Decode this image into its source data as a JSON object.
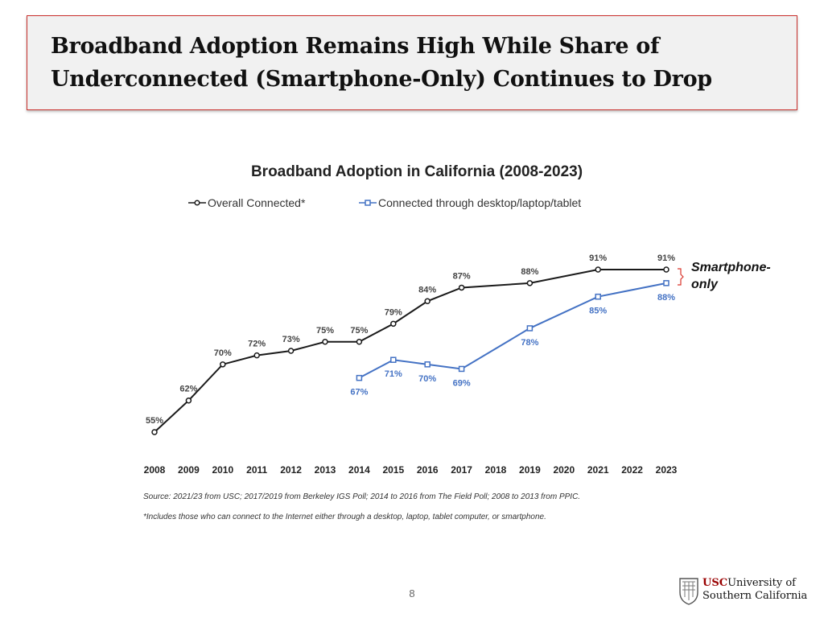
{
  "slide": {
    "title_line1": "Broadband Adoption Remains High While Share of",
    "title_line2": "Underconnected (Smartphone-Only) Continues to Drop",
    "page_number": "8",
    "callout": "Smartphone-only"
  },
  "logo": {
    "text_usc": "USC",
    "text_line1": "University of",
    "text_line2": "Southern California",
    "accent_color": "#990000"
  },
  "chart_data": {
    "type": "line",
    "title": "Broadband Adoption in California (2008-2023)",
    "xlabel": "",
    "ylabel": "",
    "ylim": [
      55,
      91
    ],
    "categories": [
      "2008",
      "2009",
      "2010",
      "2011",
      "2012",
      "2013",
      "2014",
      "2015",
      "2016",
      "2017",
      "2018",
      "2019",
      "2020",
      "2021",
      "2022",
      "2023"
    ],
    "series": [
      {
        "name": "Overall Connected*",
        "color": "#1a1a1a",
        "marker": "circle",
        "points": [
          {
            "x": "2008",
            "y": 55
          },
          {
            "x": "2009",
            "y": 62
          },
          {
            "x": "2010",
            "y": 70
          },
          {
            "x": "2011",
            "y": 72
          },
          {
            "x": "2012",
            "y": 73
          },
          {
            "x": "2013",
            "y": 75
          },
          {
            "x": "2014",
            "y": 75
          },
          {
            "x": "2015",
            "y": 79
          },
          {
            "x": "2016",
            "y": 84
          },
          {
            "x": "2017",
            "y": 87
          },
          {
            "x": "2019",
            "y": 88
          },
          {
            "x": "2021",
            "y": 91
          },
          {
            "x": "2023",
            "y": 91
          }
        ]
      },
      {
        "name": "Connected through desktop/laptop/tablet",
        "color": "#4472c4",
        "marker": "square",
        "points": [
          {
            "x": "2014",
            "y": 67
          },
          {
            "x": "2015",
            "y": 71
          },
          {
            "x": "2016",
            "y": 70
          },
          {
            "x": "2017",
            "y": 69
          },
          {
            "x": "2019",
            "y": 78
          },
          {
            "x": "2021",
            "y": 85
          },
          {
            "x": "2023",
            "y": 88
          }
        ]
      }
    ],
    "legend_position": "top",
    "bracket_color": "#d9342b",
    "source_note": "Source: 2021/23 from USC; 2017/2019 from Berkeley IGS Poll; 2014 to 2016 from The Field Poll; 2008 to 2013 from PPIC.",
    "footnote": "*Includes those who can connect to the Internet either through a desktop, laptop, tablet computer, or smartphone."
  }
}
